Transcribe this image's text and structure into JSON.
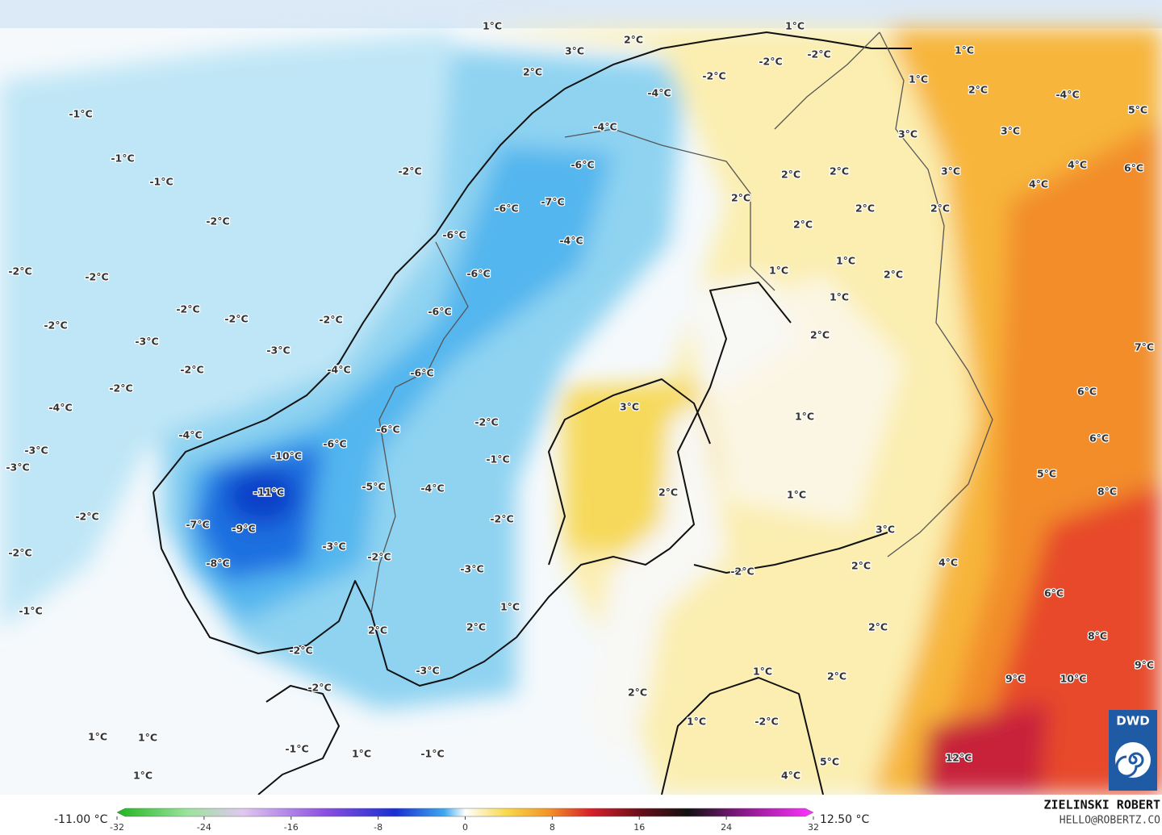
{
  "map": {
    "labels": [
      "1°C",
      "1°C",
      "2°C",
      "3°C",
      "2°C",
      "-2°C",
      "-2°C",
      "1°C",
      "1°C",
      "-2°C",
      "2°C",
      "-4°C",
      "-4°C",
      "5°C",
      "-1°C",
      "-4°C",
      "3°C",
      "3°C",
      "-1°C",
      "-2°C",
      "-6°C",
      "2°C",
      "2°C",
      "3°C",
      "4°C",
      "6°C",
      "-1°C",
      "4°C",
      "2°C",
      "-7°C",
      "-6°C",
      "2°C",
      "2°C",
      "-2°C",
      "2°C",
      "-6°C",
      "-4°C",
      "1°C",
      "2°C",
      "1°C",
      "-2°C",
      "-2°C",
      "-6°C",
      "1°C",
      "-2°C",
      "-6°C",
      "-2°C",
      "-2°C",
      "-2°C",
      "2°C",
      "-3°C",
      "-3°C",
      "7°C",
      "-2°C",
      "-4°C",
      "-6°C",
      "-2°C",
      "6°C",
      "-4°C",
      "3°C",
      "1°C",
      "-2°C",
      "-6°C",
      "-4°C",
      "6°C",
      "-6°C",
      "-3°C",
      "-10°C",
      "-1°C",
      "-3°C",
      "5°C",
      "-11°C",
      "-5°C",
      "-4°C",
      "2°C",
      "1°C",
      "8°C",
      "-2°C",
      "-2°C",
      "-7°C",
      "-9°C",
      "3°C",
      "-3°C",
      "-2°C",
      "-2°C",
      "4°C",
      "-8°C",
      "2°C",
      "-2°C",
      "-3°C",
      "6°C",
      "1°C",
      "-1°C",
      "2°C",
      "2°C",
      "2°C",
      "8°C",
      "-2°C",
      "-3°C",
      "1°C",
      "2°C",
      "9°C",
      "-2°C",
      "9°C",
      "10°C",
      "2°C",
      "1°C",
      "-2°C",
      "1°C",
      "1°C",
      "-1°C",
      "1°C",
      "-1°C",
      "12°C",
      "5°C",
      "1°C",
      "4°C"
    ],
    "colorbar": {
      "min_label": "-11.00 °C",
      "max_label": "12.50 °C",
      "ticks": [
        -32,
        -24,
        -16,
        -8,
        0,
        8,
        16,
        24,
        32
      ]
    },
    "author": "ZIELINSKI ROBERT",
    "contact": "HELLO@ROBERTZ.CO",
    "logo": "DWD"
  }
}
